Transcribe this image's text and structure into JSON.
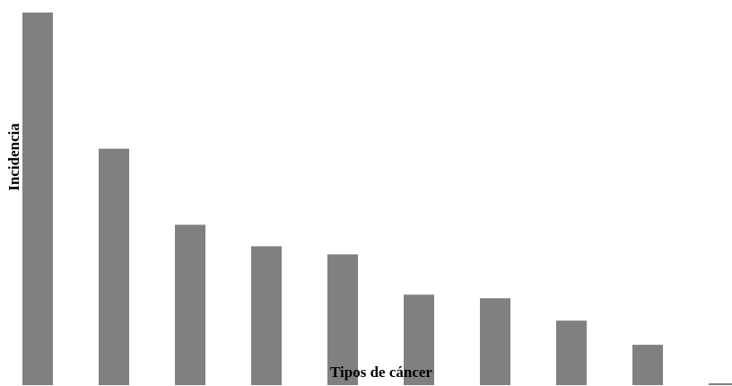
{
  "chart_data": {
    "type": "bar",
    "x_label": "Tipos de cáncer",
    "y_label": "Incidencia",
    "categories": [
      null,
      null,
      null,
      null,
      null,
      null,
      null,
      null,
      null,
      null
    ],
    "values": [
      416,
      264,
      179,
      155,
      146,
      101,
      97,
      72,
      45,
      2
    ],
    "color": "#808080",
    "ylim": [
      0,
      430
    ]
  }
}
